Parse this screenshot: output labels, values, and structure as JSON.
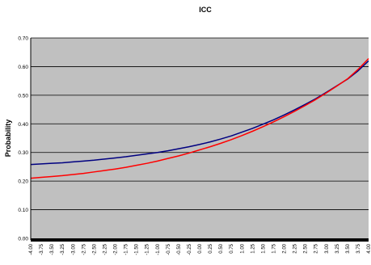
{
  "chart_data": {
    "type": "line",
    "title": "ICC",
    "xlabel": "",
    "ylabel": "Probability",
    "ylim": [
      0,
      0.7
    ],
    "y_ticks": [
      "0.00",
      "0.10",
      "0.20",
      "0.30",
      "0.40",
      "0.50",
      "0.60",
      "0.70"
    ],
    "categories": [
      "-4.00",
      "-3.75",
      "-3.50",
      "-3.25",
      "-3.00",
      "-2.75",
      "-2.50",
      "-2.25",
      "-2.00",
      "-1.75",
      "-1.50",
      "-1.25",
      "-1.00",
      "-0.75",
      "-0.50",
      "-0.25",
      "0.00",
      "0.25",
      "0.50",
      "0.75",
      "1.00",
      "1.25",
      "1.50",
      "1.75",
      "2.00",
      "2.25",
      "2.50",
      "2.75",
      "3.00",
      "3.25",
      "3.50",
      "3.75",
      "4.00"
    ],
    "x": [
      -4,
      -3.75,
      -3.5,
      -3.25,
      -3,
      -2.75,
      -2.5,
      -2.25,
      -2,
      -1.75,
      -1.5,
      -1.25,
      -1,
      -0.75,
      -0.5,
      -0.25,
      0,
      0.25,
      0.5,
      0.75,
      1,
      1.25,
      1.5,
      1.75,
      2,
      2.25,
      2.5,
      2.75,
      3,
      3.25,
      3.5,
      3.75,
      4
    ],
    "grid": true,
    "plot_background": "#c0c0c0",
    "series": [
      {
        "color": "#000080",
        "values": [
          0.258,
          0.26,
          0.262,
          0.264,
          0.267,
          0.27,
          0.273,
          0.277,
          0.281,
          0.285,
          0.29,
          0.295,
          0.3,
          0.306,
          0.313,
          0.32,
          0.328,
          0.337,
          0.347,
          0.358,
          0.371,
          0.384,
          0.399,
          0.414,
          0.431,
          0.449,
          0.468,
          0.488,
          0.51,
          0.533,
          0.556,
          0.585,
          0.62
        ]
      },
      {
        "color": "#ff0000",
        "values": [
          0.21,
          0.213,
          0.216,
          0.219,
          0.223,
          0.227,
          0.232,
          0.237,
          0.242,
          0.248,
          0.255,
          0.262,
          0.27,
          0.279,
          0.288,
          0.298,
          0.309,
          0.32,
          0.332,
          0.345,
          0.359,
          0.374,
          0.39,
          0.407,
          0.425,
          0.444,
          0.464,
          0.485,
          0.508,
          0.532,
          0.557,
          0.59,
          0.628
        ]
      }
    ]
  }
}
